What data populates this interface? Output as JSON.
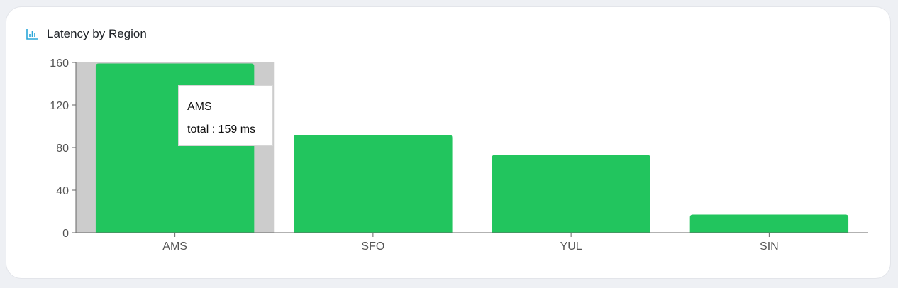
{
  "card": {
    "title": "Latency by Region",
    "icon": "bar-chart-icon"
  },
  "tooltip": {
    "category": "AMS",
    "series_label": "total",
    "separator": " : ",
    "value": "159 ms"
  },
  "colors": {
    "bar": "#22c55e",
    "hover_band": "#cccccc",
    "axis": "#666666",
    "icon": "#2aa7d8"
  },
  "chart_data": {
    "type": "bar",
    "title": "Latency by Region",
    "categories": [
      "AMS",
      "SFO",
      "YUL",
      "SIN"
    ],
    "series": [
      {
        "name": "total",
        "values": [
          159,
          92,
          73,
          17
        ]
      }
    ],
    "unit": "ms",
    "ylim": [
      0,
      160
    ],
    "yticks": [
      0,
      40,
      80,
      120,
      160
    ],
    "grid": false,
    "legend": "none",
    "highlighted_category": "AMS"
  }
}
